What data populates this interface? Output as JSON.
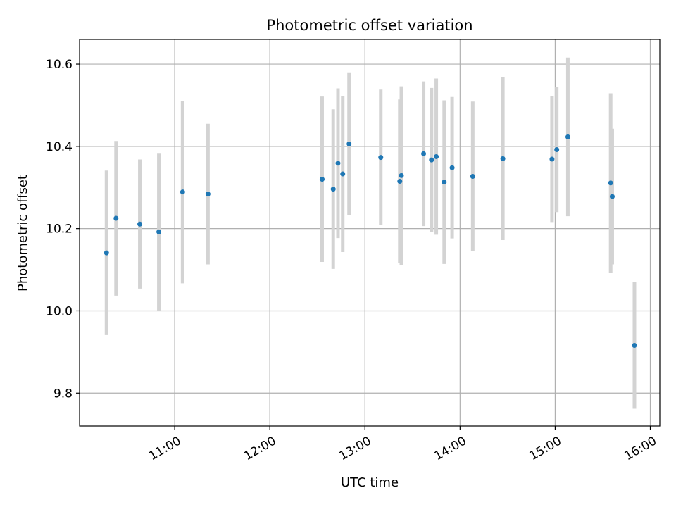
{
  "chart_data": {
    "type": "scatter",
    "title": "Photometric offset variation",
    "xlabel": "UTC time",
    "ylabel": "Photometric offset",
    "x_type": "time",
    "x_ticks": [
      "11:00",
      "12:00",
      "13:00",
      "14:00",
      "15:00",
      "16:00"
    ],
    "y_ticks": [
      "9.8",
      "10.0",
      "10.2",
      "10.4",
      "10.6"
    ],
    "xlim": [
      "10:00",
      "16:06"
    ],
    "ylim": [
      9.72,
      10.66
    ],
    "grid": true,
    "legend": "none",
    "colors": {
      "point": "#1f77b4",
      "errorbar": "#d3d3d3",
      "grid": "#b0b0b0"
    },
    "points": [
      {
        "x": "10:17",
        "y": 10.141,
        "err": 0.2
      },
      {
        "x": "10:23",
        "y": 10.225,
        "err": 0.188
      },
      {
        "x": "10:38",
        "y": 10.211,
        "err": 0.157
      },
      {
        "x": "10:50",
        "y": 10.192,
        "err": 0.192
      },
      {
        "x": "11:05",
        "y": 10.289,
        "err": 0.222
      },
      {
        "x": "11:21",
        "y": 10.284,
        "err": 0.171
      },
      {
        "x": "12:33",
        "y": 10.32,
        "err": 0.201
      },
      {
        "x": "12:40",
        "y": 10.296,
        "err": 0.194
      },
      {
        "x": "12:43",
        "y": 10.359,
        "err": 0.182
      },
      {
        "x": "12:46",
        "y": 10.333,
        "err": 0.19
      },
      {
        "x": "12:50",
        "y": 10.406,
        "err": 0.174
      },
      {
        "x": "13:10",
        "y": 10.373,
        "err": 0.165
      },
      {
        "x": "13:22",
        "y": 10.315,
        "err": 0.199
      },
      {
        "x": "13:23",
        "y": 10.329,
        "err": 0.217
      },
      {
        "x": "13:37",
        "y": 10.382,
        "err": 0.176
      },
      {
        "x": "13:42",
        "y": 10.367,
        "err": 0.175
      },
      {
        "x": "13:45",
        "y": 10.375,
        "err": 0.19
      },
      {
        "x": "13:50",
        "y": 10.313,
        "err": 0.199
      },
      {
        "x": "13:55",
        "y": 10.348,
        "err": 0.172
      },
      {
        "x": "14:08",
        "y": 10.327,
        "err": 0.182
      },
      {
        "x": "14:27",
        "y": 10.37,
        "err": 0.198
      },
      {
        "x": "14:58",
        "y": 10.369,
        "err": 0.153
      },
      {
        "x": "15:01",
        "y": 10.392,
        "err": 0.152
      },
      {
        "x": "15:08",
        "y": 10.423,
        "err": 0.193
      },
      {
        "x": "15:35",
        "y": 10.311,
        "err": 0.218
      },
      {
        "x": "15:36",
        "y": 10.278,
        "err": 0.165
      },
      {
        "x": "15:50",
        "y": 9.916,
        "err": 0.154
      }
    ]
  }
}
